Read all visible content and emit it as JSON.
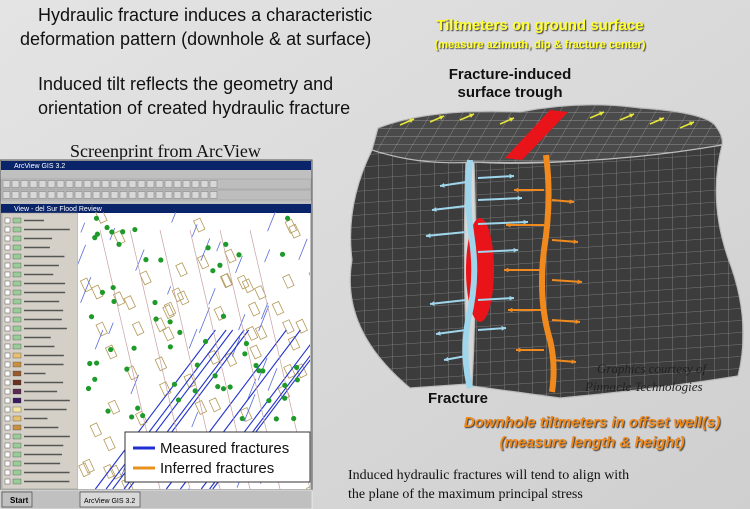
{
  "heading": {
    "lines": [
      "Hydraulic fracture induces a characteristic",
      "deformation pattern (downhole & at surface)"
    ]
  },
  "subheading": {
    "lines": [
      "Induced tilt reflects the geometry and",
      "orientation of created hydraulic fracture"
    ]
  },
  "screenshot": {
    "caption": "Screenprint from ArcView",
    "window_title": "ArcView GIS 3.2",
    "view_title": "View - del Sur Flood Review",
    "legend": [
      {
        "label": "Measured fractures",
        "color": "#1f2fd0"
      },
      {
        "label": "Inferred fractures",
        "color": "#e8921e"
      }
    ],
    "taskbar": {
      "start": "Start",
      "items": [
        "ArcView GIS 3.2"
      ]
    }
  },
  "diagram": {
    "top_label": {
      "lines": [
        "Tiltmeters on ground surface",
        "(measure azimuth, dip & fracture center)"
      ]
    },
    "trough_label": {
      "lines": [
        "Fracture-induced",
        "surface trough"
      ]
    },
    "fracture_label": "Fracture",
    "credit": {
      "lines": [
        "Graphics courtesy of",
        "Pinnacle Technologies"
      ]
    },
    "downhole_label": {
      "lines": [
        "Downhole tiltmeters in offset well(s)",
        "(measure length & height)"
      ]
    }
  },
  "footer": {
    "lines": [
      "Induced hydraulic fractures will tend to align with",
      "the plane of the maximum principal stress"
    ]
  }
}
